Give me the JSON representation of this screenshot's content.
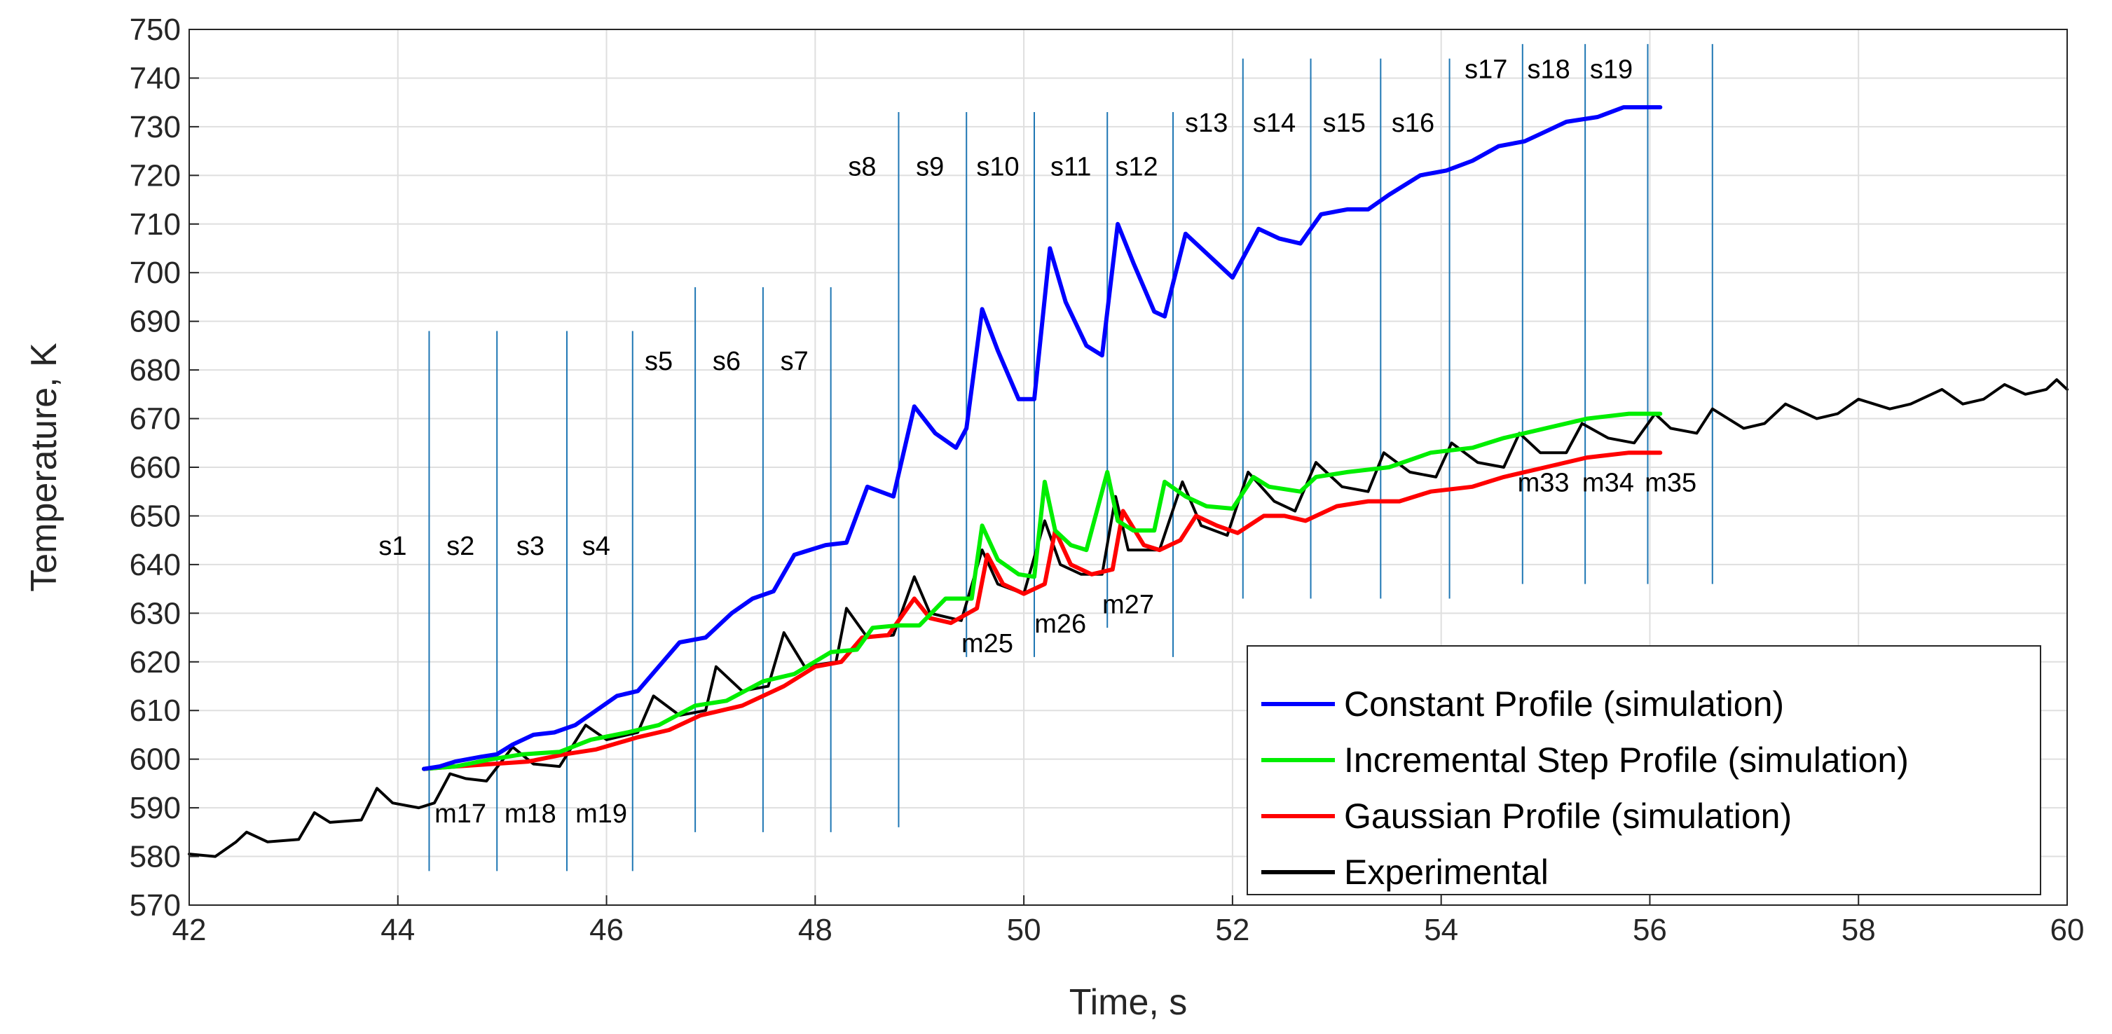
{
  "chart_data": {
    "type": "line",
    "title": "",
    "xlabel": "Time, s",
    "ylabel": "Temperature, K",
    "xlim": [
      42,
      60
    ],
    "ylim": [
      570,
      750
    ],
    "grid": true,
    "x_ticks": [
      42,
      44,
      46,
      48,
      50,
      52,
      54,
      56,
      58,
      60
    ],
    "y_ticks": [
      570,
      580,
      590,
      600,
      610,
      620,
      630,
      640,
      650,
      660,
      670,
      680,
      690,
      700,
      710,
      720,
      730,
      740,
      750
    ],
    "legend_position": "bottom-right",
    "legend": [
      "Constant Profile (simulation)",
      "Incremental Step Profile (simulation)",
      "Gaussian Profile (simulation)",
      "Experimental"
    ],
    "series": [
      {
        "name": "Constant Profile (simulation)",
        "color": "#0000ff",
        "x": [
          44.25,
          44.4,
          44.55,
          44.8,
          44.95,
          45.1,
          45.3,
          45.5,
          45.7,
          45.9,
          46.1,
          46.3,
          46.5,
          46.7,
          46.95,
          47.2,
          47.4,
          47.6,
          47.8,
          48.1,
          48.3,
          48.5,
          48.75,
          48.95,
          49.15,
          49.35,
          49.45,
          49.6,
          49.75,
          49.95,
          50.1,
          50.25,
          50.4,
          50.6,
          50.75,
          50.9,
          51.05,
          51.25,
          51.35,
          51.55,
          51.75,
          52.0,
          52.25,
          52.45,
          52.65,
          52.85,
          53.1,
          53.3,
          53.5,
          53.8,
          54.05,
          54.3,
          54.55,
          54.8,
          55.0,
          55.2,
          55.5,
          55.75,
          55.95,
          56.1
        ],
        "values": [
          598,
          598.5,
          599.5,
          600.5,
          601,
          603,
          605,
          605.5,
          607,
          610,
          613,
          614,
          619,
          624,
          625,
          630,
          633,
          634.5,
          642,
          644,
          644.5,
          656,
          654,
          672.5,
          667,
          664,
          668,
          692.5,
          684,
          674,
          674,
          705,
          694,
          685,
          683,
          710,
          702,
          692,
          691,
          708,
          704,
          699,
          709,
          707,
          706,
          712,
          713,
          713,
          716,
          720,
          721,
          723,
          726,
          727,
          729,
          731,
          732,
          734,
          734,
          734
        ]
      },
      {
        "name": "Incremental Step Profile (simulation)",
        "color": "#00ee00",
        "x": [
          44.25,
          44.55,
          44.9,
          45.2,
          45.55,
          45.85,
          46.2,
          46.5,
          46.85,
          47.15,
          47.5,
          47.8,
          48.15,
          48.4,
          48.55,
          48.8,
          49.0,
          49.25,
          49.5,
          49.6,
          49.75,
          49.95,
          50.1,
          50.2,
          50.3,
          50.45,
          50.6,
          50.8,
          50.9,
          51.05,
          51.25,
          51.35,
          51.55,
          51.75,
          52.0,
          52.2,
          52.35,
          52.65,
          52.8,
          53.1,
          53.5,
          53.9,
          54.3,
          54.6,
          55.0,
          55.4,
          55.8,
          56.1
        ],
        "values": [
          598,
          598.5,
          600,
          601,
          601.5,
          604,
          605.5,
          607,
          611,
          612,
          616,
          617.5,
          622,
          622.5,
          627,
          627.5,
          627.5,
          633,
          633,
          648,
          641,
          638,
          637.5,
          657,
          647,
          644,
          643,
          659,
          649,
          647,
          647,
          657,
          654,
          652,
          651.5,
          658,
          656,
          655,
          658,
          659,
          660,
          663,
          664,
          666,
          668,
          670,
          671,
          671
        ]
      },
      {
        "name": "Gaussian Profile (simulation)",
        "color": "#ff0000",
        "x": [
          44.25,
          44.55,
          44.9,
          45.25,
          45.6,
          45.9,
          46.3,
          46.6,
          46.9,
          47.3,
          47.7,
          48.0,
          48.25,
          48.45,
          48.7,
          48.95,
          49.1,
          49.3,
          49.55,
          49.65,
          49.8,
          50.0,
          50.2,
          50.3,
          50.45,
          50.65,
          50.85,
          50.95,
          51.15,
          51.3,
          51.5,
          51.65,
          51.85,
          52.05,
          52.3,
          52.5,
          52.7,
          53.0,
          53.3,
          53.6,
          53.9,
          54.3,
          54.6,
          55.0,
          55.4,
          55.8,
          56.1
        ],
        "values": [
          598,
          598.5,
          599,
          599.5,
          601,
          602,
          604.5,
          606,
          609,
          611,
          615,
          619,
          620,
          625,
          625.5,
          633,
          629,
          628,
          631,
          642,
          636,
          634,
          636,
          647,
          640,
          638,
          639,
          651,
          644,
          643,
          645,
          650,
          648,
          646.5,
          650,
          650,
          649,
          652,
          653,
          653,
          655,
          656,
          658,
          660,
          662,
          663,
          663
        ]
      },
      {
        "name": "Experimental",
        "color": "#000000",
        "x": [
          42.0,
          42.25,
          42.45,
          42.55,
          42.75,
          43.05,
          43.2,
          43.35,
          43.65,
          43.8,
          43.95,
          44.2,
          44.35,
          44.5,
          44.65,
          44.85,
          45.1,
          45.3,
          45.55,
          45.8,
          46.0,
          46.3,
          46.45,
          46.7,
          46.95,
          47.05,
          47.3,
          47.55,
          47.7,
          47.9,
          48.2,
          48.3,
          48.5,
          48.75,
          48.95,
          49.1,
          49.4,
          49.6,
          49.75,
          50.0,
          50.2,
          50.35,
          50.55,
          50.75,
          50.88,
          51.0,
          51.3,
          51.52,
          51.7,
          51.95,
          52.15,
          52.4,
          52.6,
          52.8,
          53.05,
          53.3,
          53.45,
          53.7,
          53.95,
          54.1,
          54.35,
          54.6,
          54.75,
          54.95,
          55.2,
          55.35,
          55.6,
          55.85,
          56.05,
          56.2,
          56.45,
          56.6,
          56.9,
          57.1,
          57.3,
          57.6,
          57.8,
          58.0,
          58.3,
          58.5,
          58.8,
          59.0,
          59.2,
          59.4,
          59.6,
          59.8,
          59.9,
          60.0
        ],
        "values": [
          580.5,
          580,
          583,
          585,
          583,
          583.5,
          589,
          587,
          587.5,
          594,
          591,
          590,
          591,
          597,
          596,
          595.5,
          602.5,
          599,
          598.5,
          607,
          604,
          605.5,
          613,
          609,
          610,
          619,
          614,
          615,
          626,
          619,
          620,
          631,
          625,
          625.5,
          637.5,
          630,
          628.5,
          643,
          636,
          634,
          649,
          640,
          638,
          638,
          654,
          643,
          643,
          657,
          648,
          646,
          659,
          653,
          651,
          661,
          656,
          655,
          663,
          659,
          658,
          665,
          661,
          660,
          667,
          663,
          663,
          669,
          666,
          665,
          671,
          668,
          667,
          672,
          668,
          669,
          673,
          670,
          671,
          674,
          672,
          673,
          676,
          673,
          674,
          677,
          675,
          676,
          678,
          676
        ]
      }
    ],
    "annotations": {
      "s_markers": [
        {
          "label": "s1",
          "x": 44.3,
          "y_top": 688,
          "y_bottom": 577,
          "label_y": 642
        },
        {
          "label": "s2",
          "x": 44.95,
          "y_top": 688,
          "y_bottom": 577,
          "label_y": 642
        },
        {
          "label": "s3",
          "x": 45.62,
          "y_top": 688,
          "y_bottom": 577,
          "label_y": 642
        },
        {
          "label": "s4",
          "x": 46.25,
          "y_top": 688,
          "y_bottom": 577,
          "label_y": 642
        },
        {
          "label": "s5",
          "x": 46.85,
          "y_top": 697,
          "y_bottom": 585,
          "label_y": 680
        },
        {
          "label": "s6",
          "x": 47.5,
          "y_top": 697,
          "y_bottom": 585,
          "label_y": 680
        },
        {
          "label": "s7",
          "x": 48.15,
          "y_top": 697,
          "y_bottom": 585,
          "label_y": 680
        },
        {
          "label": "s8",
          "x": 48.8,
          "y_top": 733,
          "y_bottom": 586,
          "label_y": 720
        },
        {
          "label": "s9",
          "x": 49.45,
          "y_top": 733,
          "y_bottom": 621,
          "label_y": 720
        },
        {
          "label": "s10",
          "x": 50.1,
          "y_top": 733,
          "y_bottom": 621,
          "label_y": 720
        },
        {
          "label": "s11",
          "x": 50.8,
          "y_top": 733,
          "y_bottom": 627,
          "label_y": 720
        },
        {
          "label": "s12",
          "x": 51.43,
          "y_top": 733,
          "y_bottom": 621,
          "label_y": 720
        },
        {
          "label": "s13",
          "x": 52.1,
          "y_top": 744,
          "y_bottom": 633,
          "label_y": 729
        },
        {
          "label": "s14",
          "x": 52.75,
          "y_top": 744,
          "y_bottom": 633,
          "label_y": 729
        },
        {
          "label": "s15",
          "x": 53.42,
          "y_top": 744,
          "y_bottom": 633,
          "label_y": 729
        },
        {
          "label": "s16",
          "x": 54.08,
          "y_top": 744,
          "y_bottom": 633,
          "label_y": 729
        },
        {
          "label": "s17",
          "x": 54.78,
          "y_top": 747,
          "y_bottom": 636,
          "label_y": 740
        },
        {
          "label": "s18",
          "x": 55.38,
          "y_top": 747,
          "y_bottom": 636,
          "label_y": 740
        },
        {
          "label": "s19",
          "x": 55.98,
          "y_top": 747,
          "y_bottom": 636,
          "label_y": 740
        },
        {
          "label": "",
          "x": 56.6,
          "y_top": 747,
          "y_bottom": 636,
          "label_y": 740
        }
      ],
      "m_labels": [
        {
          "label": "m17",
          "x": 44.6,
          "y": 587
        },
        {
          "label": "m18",
          "x": 45.27,
          "y": 587
        },
        {
          "label": "m19",
          "x": 45.95,
          "y": 587
        },
        {
          "label": "m25",
          "x": 49.65,
          "y": 622
        },
        {
          "label": "m26",
          "x": 50.35,
          "y": 626
        },
        {
          "label": "m27",
          "x": 51.0,
          "y": 630
        },
        {
          "label": "m33",
          "x": 54.98,
          "y": 655
        },
        {
          "label": "m34",
          "x": 55.6,
          "y": 655
        },
        {
          "label": "m35",
          "x": 56.2,
          "y": 655
        }
      ]
    }
  }
}
